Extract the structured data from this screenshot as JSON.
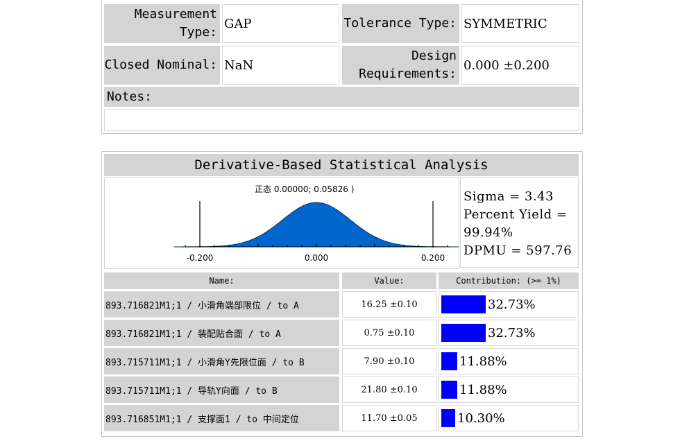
{
  "info": {
    "measurement_type_label": "Measurement Type:",
    "measurement_type_value": "GAP",
    "tolerance_type_label": "Tolerance Type:",
    "tolerance_type_value": "SYMMETRIC",
    "closed_nominal_label": "Closed Nominal:",
    "closed_nominal_value": "NaN",
    "design_req_label": "Design Requirements:",
    "design_req_value": "0.000 ±0.200",
    "notes_label": "Notes:",
    "notes_value": ""
  },
  "analysis": {
    "title": "Derivative-Based Statistical Analysis",
    "stats": {
      "sigma": "Sigma = 3.43",
      "yield": "Percent Yield = 99.94%",
      "dpmu": "DPMU = 597.76"
    },
    "headers": {
      "name": "Name:",
      "value": "Value:",
      "contribution": "Contribution: (>= 1%)"
    },
    "rows": [
      {
        "name": "893.716821M1;1 / 小滑角端部限位 / to A",
        "value": "16.25 ±0.10",
        "contribution": "32.73%",
        "fraction": 0.3273
      },
      {
        "name": "893.716821M1;1 / 装配贴合面 / to A",
        "value": "0.75 ±0.10",
        "contribution": "32.73%",
        "fraction": 0.3273
      },
      {
        "name": "893.715711M1;1 / 小滑角Y先限位面 / to B",
        "value": "7.90 ±0.10",
        "contribution": "11.88%",
        "fraction": 0.1188
      },
      {
        "name": "893.715711M1;1 / 导轨Y向面 / to B",
        "value": "21.80 ±0.10",
        "contribution": "11.88%",
        "fraction": 0.1188
      },
      {
        "name": "893.716851M1;1 / 支撑面1 / to 中间定位",
        "value": "11.70 ±0.05",
        "contribution": "10.30%",
        "fraction": 0.103
      }
    ]
  },
  "chart_data": {
    "type": "area",
    "title": "正态 0.00000; 0.05826 )",
    "distribution": "normal",
    "mean": 0.0,
    "std": 0.05826,
    "xlim": [
      -0.25,
      0.25
    ],
    "tick_labels": [
      "-0.200",
      "0.000",
      "0.200"
    ],
    "tick_values": [
      -0.2,
      0.0,
      0.2
    ],
    "spec_limits": [
      -0.2,
      0.2
    ],
    "fill_color": "#0066cc"
  }
}
